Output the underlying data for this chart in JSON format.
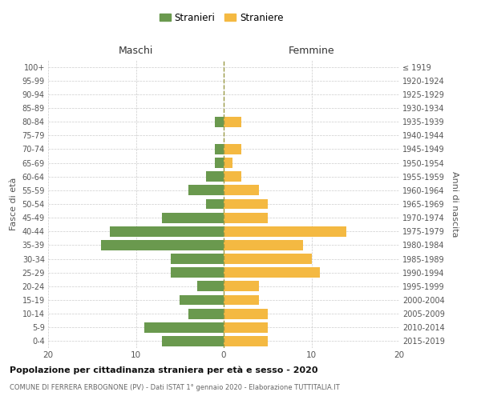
{
  "age_groups": [
    "100+",
    "95-99",
    "90-94",
    "85-89",
    "80-84",
    "75-79",
    "70-74",
    "65-69",
    "60-64",
    "55-59",
    "50-54",
    "45-49",
    "40-44",
    "35-39",
    "30-34",
    "25-29",
    "20-24",
    "15-19",
    "10-14",
    "5-9",
    "0-4"
  ],
  "birth_years": [
    "≤ 1919",
    "1920-1924",
    "1925-1929",
    "1930-1934",
    "1935-1939",
    "1940-1944",
    "1945-1949",
    "1950-1954",
    "1955-1959",
    "1960-1964",
    "1965-1969",
    "1970-1974",
    "1975-1979",
    "1980-1984",
    "1985-1989",
    "1990-1994",
    "1995-1999",
    "2000-2004",
    "2005-2009",
    "2010-2014",
    "2015-2019"
  ],
  "maschi": [
    0,
    0,
    0,
    0,
    1,
    0,
    1,
    1,
    2,
    4,
    2,
    7,
    13,
    14,
    6,
    6,
    3,
    5,
    4,
    9,
    7
  ],
  "femmine": [
    0,
    0,
    0,
    0,
    2,
    0,
    2,
    1,
    2,
    4,
    5,
    5,
    14,
    9,
    10,
    11,
    4,
    4,
    5,
    5,
    5
  ],
  "maschi_color": "#6a994e",
  "femmine_color": "#f4b942",
  "title_main": "Popolazione per cittadinanza straniera per età e sesso - 2020",
  "title_sub": "COMUNE DI FERRERA ERBOGNONE (PV) - Dati ISTAT 1° gennaio 2020 - Elaborazione TUTTITALIA.IT",
  "label_maschi": "Maschi",
  "label_femmine": "Femmine",
  "ylabel_left": "Fasce di età",
  "ylabel_right": "Anni di nascita",
  "legend_maschi": "Stranieri",
  "legend_femmine": "Straniere",
  "xlim": 20,
  "background_color": "#ffffff",
  "grid_color": "#cccccc"
}
